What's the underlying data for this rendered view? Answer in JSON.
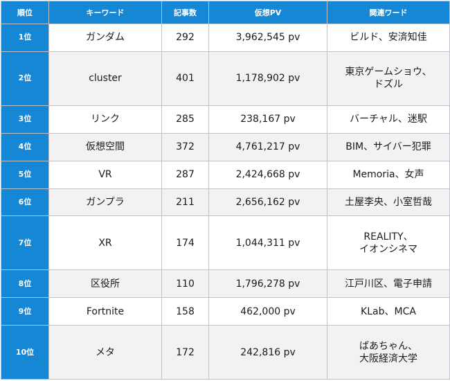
{
  "headers": [
    "順位",
    "キーワード",
    "記事数",
    "仮想PV",
    "関連ワード"
  ],
  "rows": [
    {
      "rank": "1位",
      "keyword": "ガンダム",
      "count": "292",
      "pv": "3,962,545 pv",
      "related": "ビルド、安済知佳"
    },
    {
      "rank": "2位",
      "keyword": "cluster",
      "count": "401",
      "pv": "1,178,902 pv",
      "related": "東京ゲームショウ、\nドズル"
    },
    {
      "rank": "3位",
      "keyword": "リンク",
      "count": "285",
      "pv": "238,167 pv",
      "related": "バーチャル、迷駅"
    },
    {
      "rank": "4位",
      "keyword": "仮想空間",
      "count": "372",
      "pv": "4,761,217 pv",
      "related": "BIM、サイバー犯罪"
    },
    {
      "rank": "5位",
      "keyword": "VR",
      "count": "287",
      "pv": "2,424,668 pv",
      "related": "Memoria、女声"
    },
    {
      "rank": "6位",
      "keyword": "ガンプラ",
      "count": "211",
      "pv": "2,656,162 pv",
      "related": "土屋李央、小室哲哉"
    },
    {
      "rank": "7位",
      "keyword": "XR",
      "count": "174",
      "pv": "1,044,311 pv",
      "related": "REALITY、\nイオンシネマ"
    },
    {
      "rank": "8位",
      "keyword": "区役所",
      "count": "110",
      "pv": "1,796,278 pv",
      "related": "江戸川区、電子申請"
    },
    {
      "rank": "9位",
      "keyword": "Fortnite",
      "count": "158",
      "pv": "462,000 pv",
      "related": "KLab、MCA"
    },
    {
      "rank": "10位",
      "keyword": "メタ",
      "count": "172",
      "pv": "242,816 pv",
      "related": "ばあちゃん、\n大阪経済大学"
    }
  ],
  "colors": {
    "header_bg": "#1587d4",
    "header_text": "#ffffff",
    "stripe": "#f2f2f2",
    "border": "#bfc3c7"
  }
}
